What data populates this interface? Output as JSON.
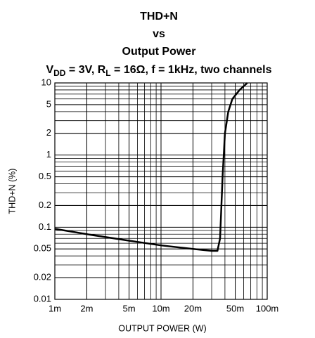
{
  "chart_data": {
    "type": "line",
    "title_lines": [
      "THD+N",
      "vs",
      "Output Power"
    ],
    "subtitle_parts": [
      "V",
      "DD",
      " = 3V, R",
      "L",
      " = 16Ω, f = 1kHz, two channels"
    ],
    "x_label": "OUTPUT POWER (W)",
    "y_label": "THD+N (%)",
    "log_x": true,
    "log_y": true,
    "grid": true,
    "minor_grid": true,
    "xlim": [
      0.001,
      0.1
    ],
    "ylim": [
      0.01,
      10
    ],
    "xticks": [
      {
        "value": 0.001,
        "label": "1m"
      },
      {
        "value": 0.002,
        "label": "2m"
      },
      {
        "value": 0.005,
        "label": "5m"
      },
      {
        "value": 0.01,
        "label": "10m"
      },
      {
        "value": 0.02,
        "label": "20m"
      },
      {
        "value": 0.05,
        "label": "50m"
      },
      {
        "value": 0.1,
        "label": "100m"
      }
    ],
    "yticks": [
      0.01,
      0.02,
      0.05,
      0.1,
      0.2,
      0.5,
      1,
      2,
      5,
      10
    ],
    "series": [
      {
        "color": "#000000",
        "x": [
          0.001,
          0.002,
          0.005,
          0.01,
          0.02,
          0.03,
          0.034,
          0.036,
          0.038,
          0.04,
          0.043,
          0.047,
          0.055,
          0.065
        ],
        "values": [
          0.095,
          0.08,
          0.065,
          0.056,
          0.05,
          0.047,
          0.047,
          0.07,
          0.5,
          2,
          4,
          6,
          8,
          10
        ]
      }
    ]
  }
}
